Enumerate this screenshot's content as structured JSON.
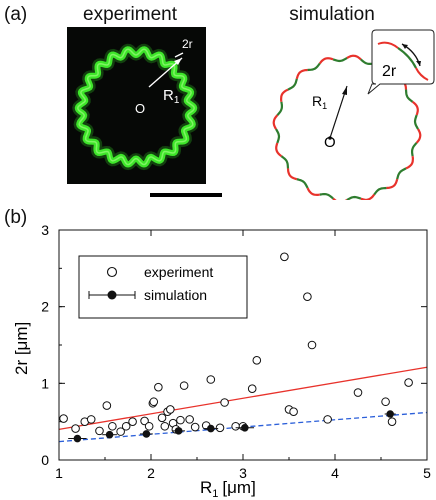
{
  "figure": {
    "panel_a": {
      "label": "(a)",
      "left_title": "experiment",
      "right_title": "simulation",
      "exp_radius_label": "R",
      "exp_radius_sub": "1",
      "exp_center_label": "O",
      "exp_wavelength_label": "2r",
      "sim_radius_label": "R",
      "sim_radius_sub": "1",
      "sim_center_label": "O",
      "sim_inset_label": "2r"
    },
    "panel_b": {
      "label": "(b)"
    }
  },
  "colors": {
    "membrane_green": "#3ee52a",
    "sim_red": "#e8322b",
    "sim_green": "#2f7d2f",
    "fit_red": "#e8322b",
    "fit_blue": "#2b5fd9"
  },
  "chart_data": {
    "type": "scatter",
    "xlabel_main": "R",
    "xlabel_sub": "1",
    "xlabel_unit": "[μm]",
    "ylabel": "2r [μm]",
    "xlim": [
      1,
      5
    ],
    "ylim": [
      0,
      3
    ],
    "xticks": [
      "1",
      "2",
      "3",
      "4",
      "5"
    ],
    "yticks": [
      "0",
      "1",
      "2",
      "3"
    ],
    "legend_position": "top-left",
    "series": [
      {
        "name": "experiment",
        "marker": "open-circle",
        "points": [
          [
            1.05,
            0.54
          ],
          [
            1.18,
            0.41
          ],
          [
            1.28,
            0.5
          ],
          [
            1.35,
            0.53
          ],
          [
            1.44,
            0.38
          ],
          [
            1.52,
            0.71
          ],
          [
            1.58,
            0.44
          ],
          [
            1.67,
            0.37
          ],
          [
            1.73,
            0.44
          ],
          [
            1.8,
            0.5
          ],
          [
            1.93,
            0.51
          ],
          [
            1.98,
            0.44
          ],
          [
            2.02,
            0.74
          ],
          [
            2.03,
            0.76
          ],
          [
            2.08,
            0.95
          ],
          [
            2.12,
            0.55
          ],
          [
            2.15,
            0.44
          ],
          [
            2.18,
            0.63
          ],
          [
            2.21,
            0.66
          ],
          [
            2.24,
            0.48
          ],
          [
            2.27,
            0.4
          ],
          [
            2.32,
            0.52
          ],
          [
            2.36,
            0.97
          ],
          [
            2.42,
            0.53
          ],
          [
            2.48,
            0.43
          ],
          [
            2.6,
            0.45
          ],
          [
            2.65,
            1.05
          ],
          [
            2.75,
            0.42
          ],
          [
            2.8,
            0.75
          ],
          [
            2.92,
            0.44
          ],
          [
            3.0,
            0.44
          ],
          [
            3.1,
            0.93
          ],
          [
            3.15,
            1.3
          ],
          [
            3.45,
            2.65
          ],
          [
            3.5,
            0.66
          ],
          [
            3.55,
            0.63
          ],
          [
            3.7,
            2.13
          ],
          [
            3.75,
            1.5
          ],
          [
            3.92,
            0.53
          ],
          [
            4.25,
            0.88
          ],
          [
            4.55,
            0.76
          ],
          [
            4.62,
            0.5
          ],
          [
            4.8,
            1.01
          ]
        ]
      },
      {
        "name": "simulation",
        "marker": "filled-circle-errorbar",
        "points": [
          {
            "x": 1.2,
            "y": 0.28,
            "xerr": 0.1
          },
          {
            "x": 1.55,
            "y": 0.33,
            "xerr": 0.08
          },
          {
            "x": 1.95,
            "y": 0.34,
            "xerr": 0.07
          },
          {
            "x": 2.3,
            "y": 0.38,
            "xerr": 0.07
          },
          {
            "x": 2.65,
            "y": 0.41,
            "xerr": 0.08
          },
          {
            "x": 3.02,
            "y": 0.42,
            "xerr": 0.1
          },
          {
            "x": 4.6,
            "y": 0.6,
            "xerr": 0.06
          }
        ]
      }
    ],
    "fit_lines": [
      {
        "style": "solid",
        "color": "#e8322b",
        "x": [
          1,
          5
        ],
        "y": [
          0.4,
          1.21
        ]
      },
      {
        "style": "dashed",
        "color": "#2b5fd9",
        "x": [
          1,
          5
        ],
        "y": [
          0.24,
          0.62
        ]
      }
    ]
  }
}
